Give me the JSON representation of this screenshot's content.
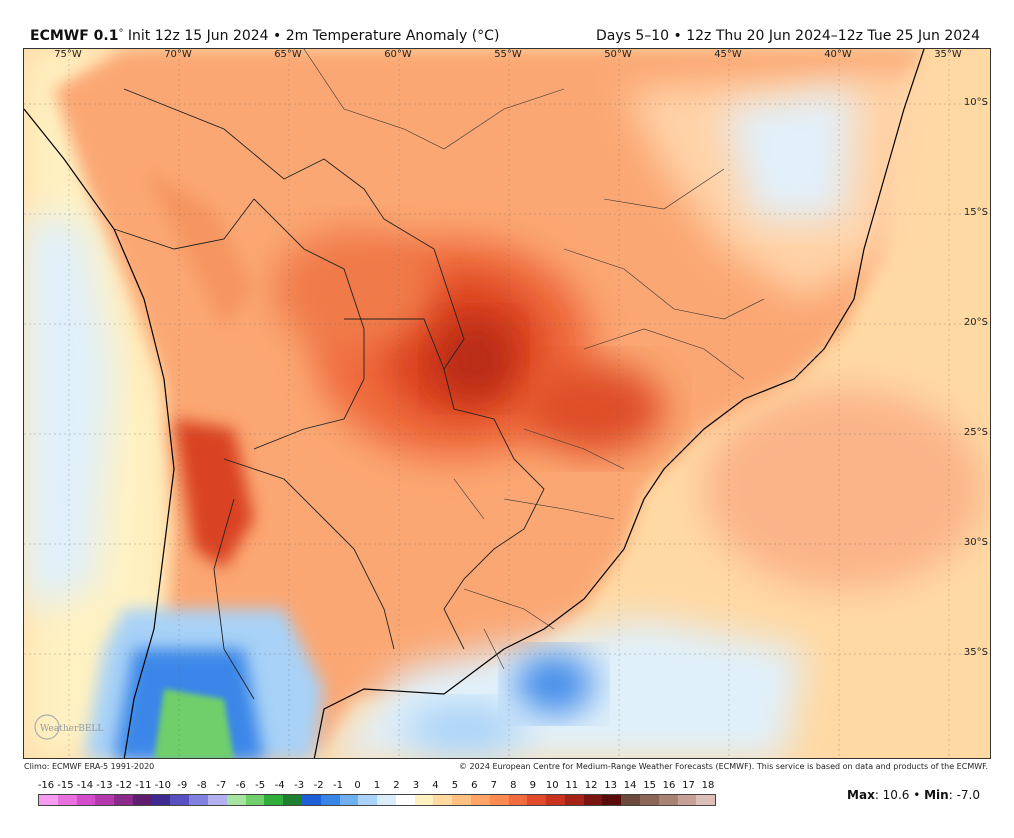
{
  "header": {
    "model": "ECMWF 0.1",
    "deg": "°",
    "title_rest": " Init 12z 15 Jun 2024 • 2m Temperature Anomaly (°C)",
    "valid": "Days 5–10 • 12z Thu 20 Jun 2024–12z Tue 25 Jun 2024"
  },
  "map": {
    "lon_labels": [
      "75°W",
      "70°W",
      "65°W",
      "60°W",
      "55°W",
      "50°W",
      "45°W",
      "40°W",
      "35°W"
    ],
    "lat_labels": [
      "10°S",
      "15°S",
      "20°S",
      "25°S",
      "30°S",
      "35°S"
    ],
    "lon_range": [
      -77.5,
      -33.5
    ],
    "lat_range": [
      -5.5,
      -37.8
    ],
    "anomaly_hotspots": [
      {
        "lon": -56,
        "lat": -19.5,
        "anomaly": 10.6
      },
      {
        "lon": -49,
        "lat": -22,
        "anomaly": 8
      },
      {
        "lon": -69,
        "lat": -28,
        "anomaly": 9
      },
      {
        "lon": -52,
        "lat": -36,
        "anomaly": -5
      },
      {
        "lon": -70,
        "lat": -37,
        "anomaly": -7
      }
    ]
  },
  "footer": {
    "climo": "Climo: ECMWF ERA-5 1991-2020",
    "copyright": "© 2024 European Centre for Medium-Range Weather Forecasts (ECMWF). This service is based on data and products of the ECMWF.",
    "logo_text": "WeatherBELL"
  },
  "colorbar": {
    "labels": [
      "-16",
      "-15",
      "-14",
      "-13",
      "-12",
      "-11",
      "-10",
      "-9",
      "-8",
      "-7",
      "-6",
      "-5",
      "-4",
      "-3",
      "-2",
      "-1",
      "0",
      "1",
      "2",
      "3",
      "4",
      "5",
      "6",
      "7",
      "8",
      "9",
      "10",
      "11",
      "12",
      "13",
      "14",
      "15",
      "16",
      "17",
      "18"
    ],
    "colors": [
      "#f79cf0",
      "#ea6fe0",
      "#d44ccb",
      "#b53aae",
      "#8c2a8b",
      "#5f1f6e",
      "#3d2b8f",
      "#5a4fc0",
      "#8080e0",
      "#b2b2ee",
      "#a6e3a0",
      "#6fcf6a",
      "#2fae3a",
      "#1e7f2e",
      "#1c5fd6",
      "#3a86e8",
      "#6fb0f0",
      "#a8d2f7",
      "#d8ecfb",
      "#ffffff",
      "#fff1c2",
      "#ffd9a0",
      "#ffc082",
      "#ffa466",
      "#fb8a50",
      "#f26b3e",
      "#e14a2c",
      "#c8321e",
      "#a42216",
      "#7a1410",
      "#5a0c0a",
      "#6b4a3c",
      "#8c6656",
      "#a88274",
      "#c4a096",
      "#dcc0b8"
    ]
  },
  "stats": {
    "max_label": "Max",
    "max_value": ": 10.6",
    "sep": " • ",
    "min_label": "Min",
    "min_value": ": -7.0"
  }
}
